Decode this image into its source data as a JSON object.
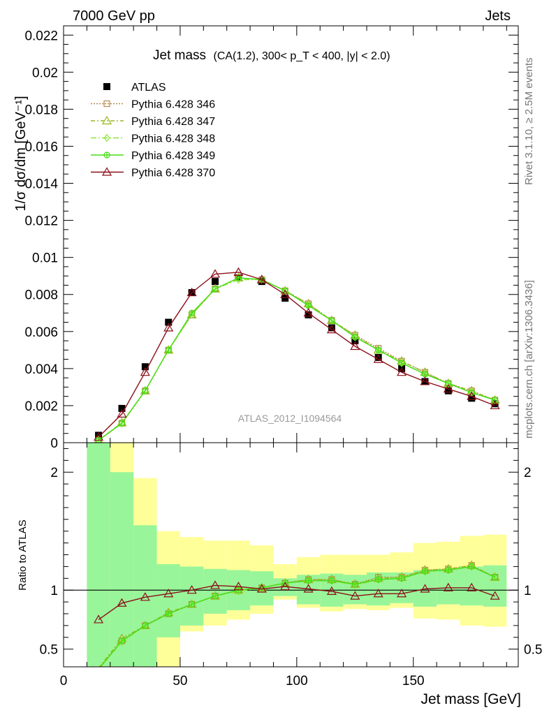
{
  "header": {
    "left": "7000 GeV pp",
    "right": "Jets",
    "side_top": "Rivet 3.1.10, ≥ 2.5M events",
    "side_bottom": "mcplots.cern.ch [arXiv:1306.3436]",
    "watermark": "ATLAS_2012_I1094564"
  },
  "colors": {
    "atlas": "#000000",
    "p346": "#b5894c",
    "p347": "#99b81e",
    "p348": "#8ee73f",
    "p349": "#44dd11",
    "p370": "#8b0f1a",
    "band_inner": "#99f599",
    "band_outer": "#ffff99"
  },
  "chart_data": [
    {
      "type": "scatter",
      "title": "Jet mass",
      "subtitle": "(CA(1.2), 300< p_T < 400, |y| < 2.0)",
      "ylabel": "1/σ dσ/dm [GeV⁻¹]",
      "xlim": [
        0,
        195
      ],
      "ylim": [
        0,
        0.0225
      ],
      "yticks": [
        "0",
        "0.002",
        "0.004",
        "0.006",
        "0.008",
        "0.01",
        "0.012",
        "0.014",
        "0.016",
        "0.018",
        "0.02",
        "0.022"
      ],
      "legend_position": "top-left",
      "x": [
        15,
        25,
        35,
        45,
        55,
        65,
        75,
        85,
        95,
        105,
        115,
        125,
        135,
        145,
        155,
        165,
        175,
        185
      ],
      "series": [
        {
          "name": "ATLAS",
          "key": "atlas",
          "marker": "filled-square",
          "values": [
            0.0004,
            0.00185,
            0.0041,
            0.0065,
            0.0081,
            0.0087,
            0.0089,
            0.0087,
            0.0078,
            0.0069,
            0.0062,
            0.0055,
            0.0046,
            0.004,
            0.0033,
            0.0028,
            0.0024,
            0.0021
          ]
        },
        {
          "name": "Pythia 6.428 346",
          "key": "p346",
          "marker": "open-square",
          "dash": "2,2",
          "values": [
            0.00013,
            0.00105,
            0.0028,
            0.005,
            0.0069,
            0.0083,
            0.0089,
            0.0088,
            0.0082,
            0.0075,
            0.0066,
            0.0058,
            0.0051,
            0.0044,
            0.0038,
            0.0032,
            0.0028,
            0.0023
          ]
        },
        {
          "name": "Pythia 6.428 347",
          "key": "p347",
          "marker": "open-triangle",
          "dash": "6,3,2,3",
          "values": [
            0.00014,
            0.00108,
            0.0028,
            0.005,
            0.0069,
            0.0083,
            0.0089,
            0.0088,
            0.0082,
            0.0075,
            0.0066,
            0.0058,
            0.005,
            0.0044,
            0.0038,
            0.0032,
            0.0028,
            0.0023
          ]
        },
        {
          "name": "Pythia 6.428 348",
          "key": "p348",
          "marker": "open-diamond",
          "dash": "8,3,2,3",
          "values": [
            0.00013,
            0.00104,
            0.0028,
            0.005,
            0.0069,
            0.0083,
            0.0088,
            0.0088,
            0.0082,
            0.0074,
            0.0066,
            0.0057,
            0.005,
            0.0043,
            0.0037,
            0.0032,
            0.0027,
            0.0023
          ]
        },
        {
          "name": "Pythia 6.428 349",
          "key": "p349",
          "marker": "open-circle",
          "dash": "",
          "values": [
            0.00013,
            0.00105,
            0.0028,
            0.005,
            0.007,
            0.0083,
            0.0089,
            0.0088,
            0.0082,
            0.0074,
            0.0066,
            0.0057,
            0.005,
            0.0043,
            0.0037,
            0.0032,
            0.0027,
            0.0023
          ]
        },
        {
          "name": "Pythia 6.428 370",
          "key": "p370",
          "marker": "open-triangle",
          "dash": "",
          "values": [
            0.0003,
            0.00155,
            0.0038,
            0.0062,
            0.0081,
            0.0091,
            0.0092,
            0.0088,
            0.008,
            0.007,
            0.0061,
            0.0052,
            0.0045,
            0.0038,
            0.0033,
            0.0029,
            0.0025,
            0.002
          ]
        }
      ]
    },
    {
      "type": "line",
      "ylabel": "Ratio to ATLAS",
      "xlabel": "Jet mass [GeV]",
      "xlim": [
        0,
        195
      ],
      "ylim": [
        0.35,
        2.25
      ],
      "xticks": [
        "0",
        "50",
        "100",
        "150"
      ],
      "yticks": [
        "0.5",
        "1",
        "2"
      ],
      "reference_line": 1,
      "bins": [
        [
          10,
          20
        ],
        [
          20,
          30
        ],
        [
          30,
          40
        ],
        [
          40,
          50
        ],
        [
          50,
          60
        ],
        [
          60,
          70
        ],
        [
          70,
          80
        ],
        [
          80,
          90
        ],
        [
          90,
          100
        ],
        [
          100,
          110
        ],
        [
          110,
          120
        ],
        [
          120,
          130
        ],
        [
          130,
          140
        ],
        [
          140,
          150
        ],
        [
          150,
          160
        ],
        [
          160,
          170
        ],
        [
          170,
          180
        ],
        [
          180,
          190
        ]
      ],
      "band_inner": [
        [
          0.3,
          2.5
        ],
        [
          0.3,
          2.0
        ],
        [
          0.3,
          1.55
        ],
        [
          0.6,
          1.22
        ],
        [
          0.7,
          1.2
        ],
        [
          0.8,
          1.18
        ],
        [
          0.83,
          1.17
        ],
        [
          0.87,
          1.16
        ],
        [
          0.95,
          1.1
        ],
        [
          0.88,
          1.13
        ],
        [
          0.86,
          1.14
        ],
        [
          0.88,
          1.13
        ],
        [
          0.87,
          1.15
        ],
        [
          0.89,
          1.15
        ],
        [
          0.86,
          1.17
        ],
        [
          0.88,
          1.18
        ],
        [
          0.87,
          1.2
        ],
        [
          0.86,
          1.21
        ]
      ],
      "band_outer": [
        [
          0.3,
          2.5
        ],
        [
          0.3,
          2.5
        ],
        [
          0.3,
          1.95
        ],
        [
          0.3,
          1.5
        ],
        [
          0.65,
          1.45
        ],
        [
          0.7,
          1.42
        ],
        [
          0.75,
          1.42
        ],
        [
          0.8,
          1.38
        ],
        [
          0.92,
          1.22
        ],
        [
          0.85,
          1.28
        ],
        [
          0.82,
          1.3
        ],
        [
          0.84,
          1.3
        ],
        [
          0.83,
          1.3
        ],
        [
          0.85,
          1.32
        ],
        [
          0.76,
          1.4
        ],
        [
          0.75,
          1.41
        ],
        [
          0.7,
          1.46
        ],
        [
          0.69,
          1.47
        ]
      ],
      "x": [
        15,
        25,
        35,
        45,
        55,
        65,
        75,
        85,
        95,
        105,
        115,
        125,
        135,
        145,
        155,
        165,
        175,
        185
      ],
      "series": [
        {
          "name": "Pythia 6.428 346",
          "key": "p346",
          "marker": "open-square",
          "dash": "2,2",
          "values": [
            0.33,
            0.57,
            0.7,
            0.8,
            0.88,
            0.95,
            1.0,
            1.02,
            1.06,
            1.09,
            1.09,
            1.05,
            1.11,
            1.11,
            1.17,
            1.18,
            1.21,
            1.11
          ]
        },
        {
          "name": "Pythia 6.428 347",
          "key": "p347",
          "marker": "open-triangle",
          "dash": "6,3,2,3",
          "values": [
            0.34,
            0.59,
            0.7,
            0.81,
            0.88,
            0.95,
            1.0,
            1.02,
            1.06,
            1.09,
            1.09,
            1.05,
            1.1,
            1.11,
            1.17,
            1.18,
            1.21,
            1.11
          ]
        },
        {
          "name": "Pythia 6.428 348",
          "key": "p348",
          "marker": "open-diamond",
          "dash": "8,3,2,3",
          "values": [
            0.33,
            0.56,
            0.7,
            0.8,
            0.88,
            0.95,
            0.99,
            1.02,
            1.06,
            1.08,
            1.08,
            1.04,
            1.09,
            1.1,
            1.16,
            1.17,
            1.2,
            1.11
          ]
        },
        {
          "name": "Pythia 6.428 349",
          "key": "p349",
          "marker": "open-circle",
          "dash": "",
          "values": [
            0.33,
            0.57,
            0.7,
            0.8,
            0.88,
            0.95,
            1.0,
            1.02,
            1.06,
            1.08,
            1.08,
            1.05,
            1.09,
            1.1,
            1.16,
            1.17,
            1.2,
            1.11
          ]
        },
        {
          "name": "Pythia 6.428 370",
          "key": "p370",
          "marker": "open-triangle",
          "dash": "",
          "values": [
            0.75,
            0.89,
            0.94,
            0.97,
            1.0,
            1.04,
            1.03,
            1.01,
            1.03,
            1.01,
            0.99,
            0.95,
            0.97,
            0.97,
            1.01,
            1.02,
            1.02,
            0.95
          ]
        }
      ]
    }
  ]
}
